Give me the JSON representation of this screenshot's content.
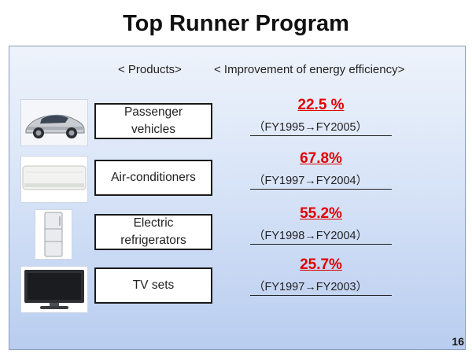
{
  "slide": {
    "title": "Top Runner Program",
    "header_products": "< Products>",
    "header_improvement": "< Improvement of energy efficiency>",
    "page_number": "16"
  },
  "products": [
    {
      "image_icon": "car-icon",
      "label_lines": [
        "Passenger",
        "vehicles"
      ],
      "improvement": "22.5 %",
      "period": "（FY1995→FY2005）"
    },
    {
      "image_icon": "air-conditioner-icon",
      "label_lines": [
        "Air-conditioners"
      ],
      "improvement": "67.8%",
      "period": "（FY1997→FY2004）"
    },
    {
      "image_icon": "refrigerator-icon",
      "label_lines": [
        "Electric",
        "refrigerators"
      ],
      "improvement": "55.2%",
      "period": "（FY1998→FY2004）"
    },
    {
      "image_icon": "tv-icon",
      "label_lines": [
        "TV sets"
      ],
      "improvement": "25.7%",
      "period": "（FY1997→FY2003）"
    }
  ],
  "colors": {
    "highlight": "#e00000",
    "panel_top": "#eef3fb",
    "panel_bottom": "#b9cdf0"
  }
}
